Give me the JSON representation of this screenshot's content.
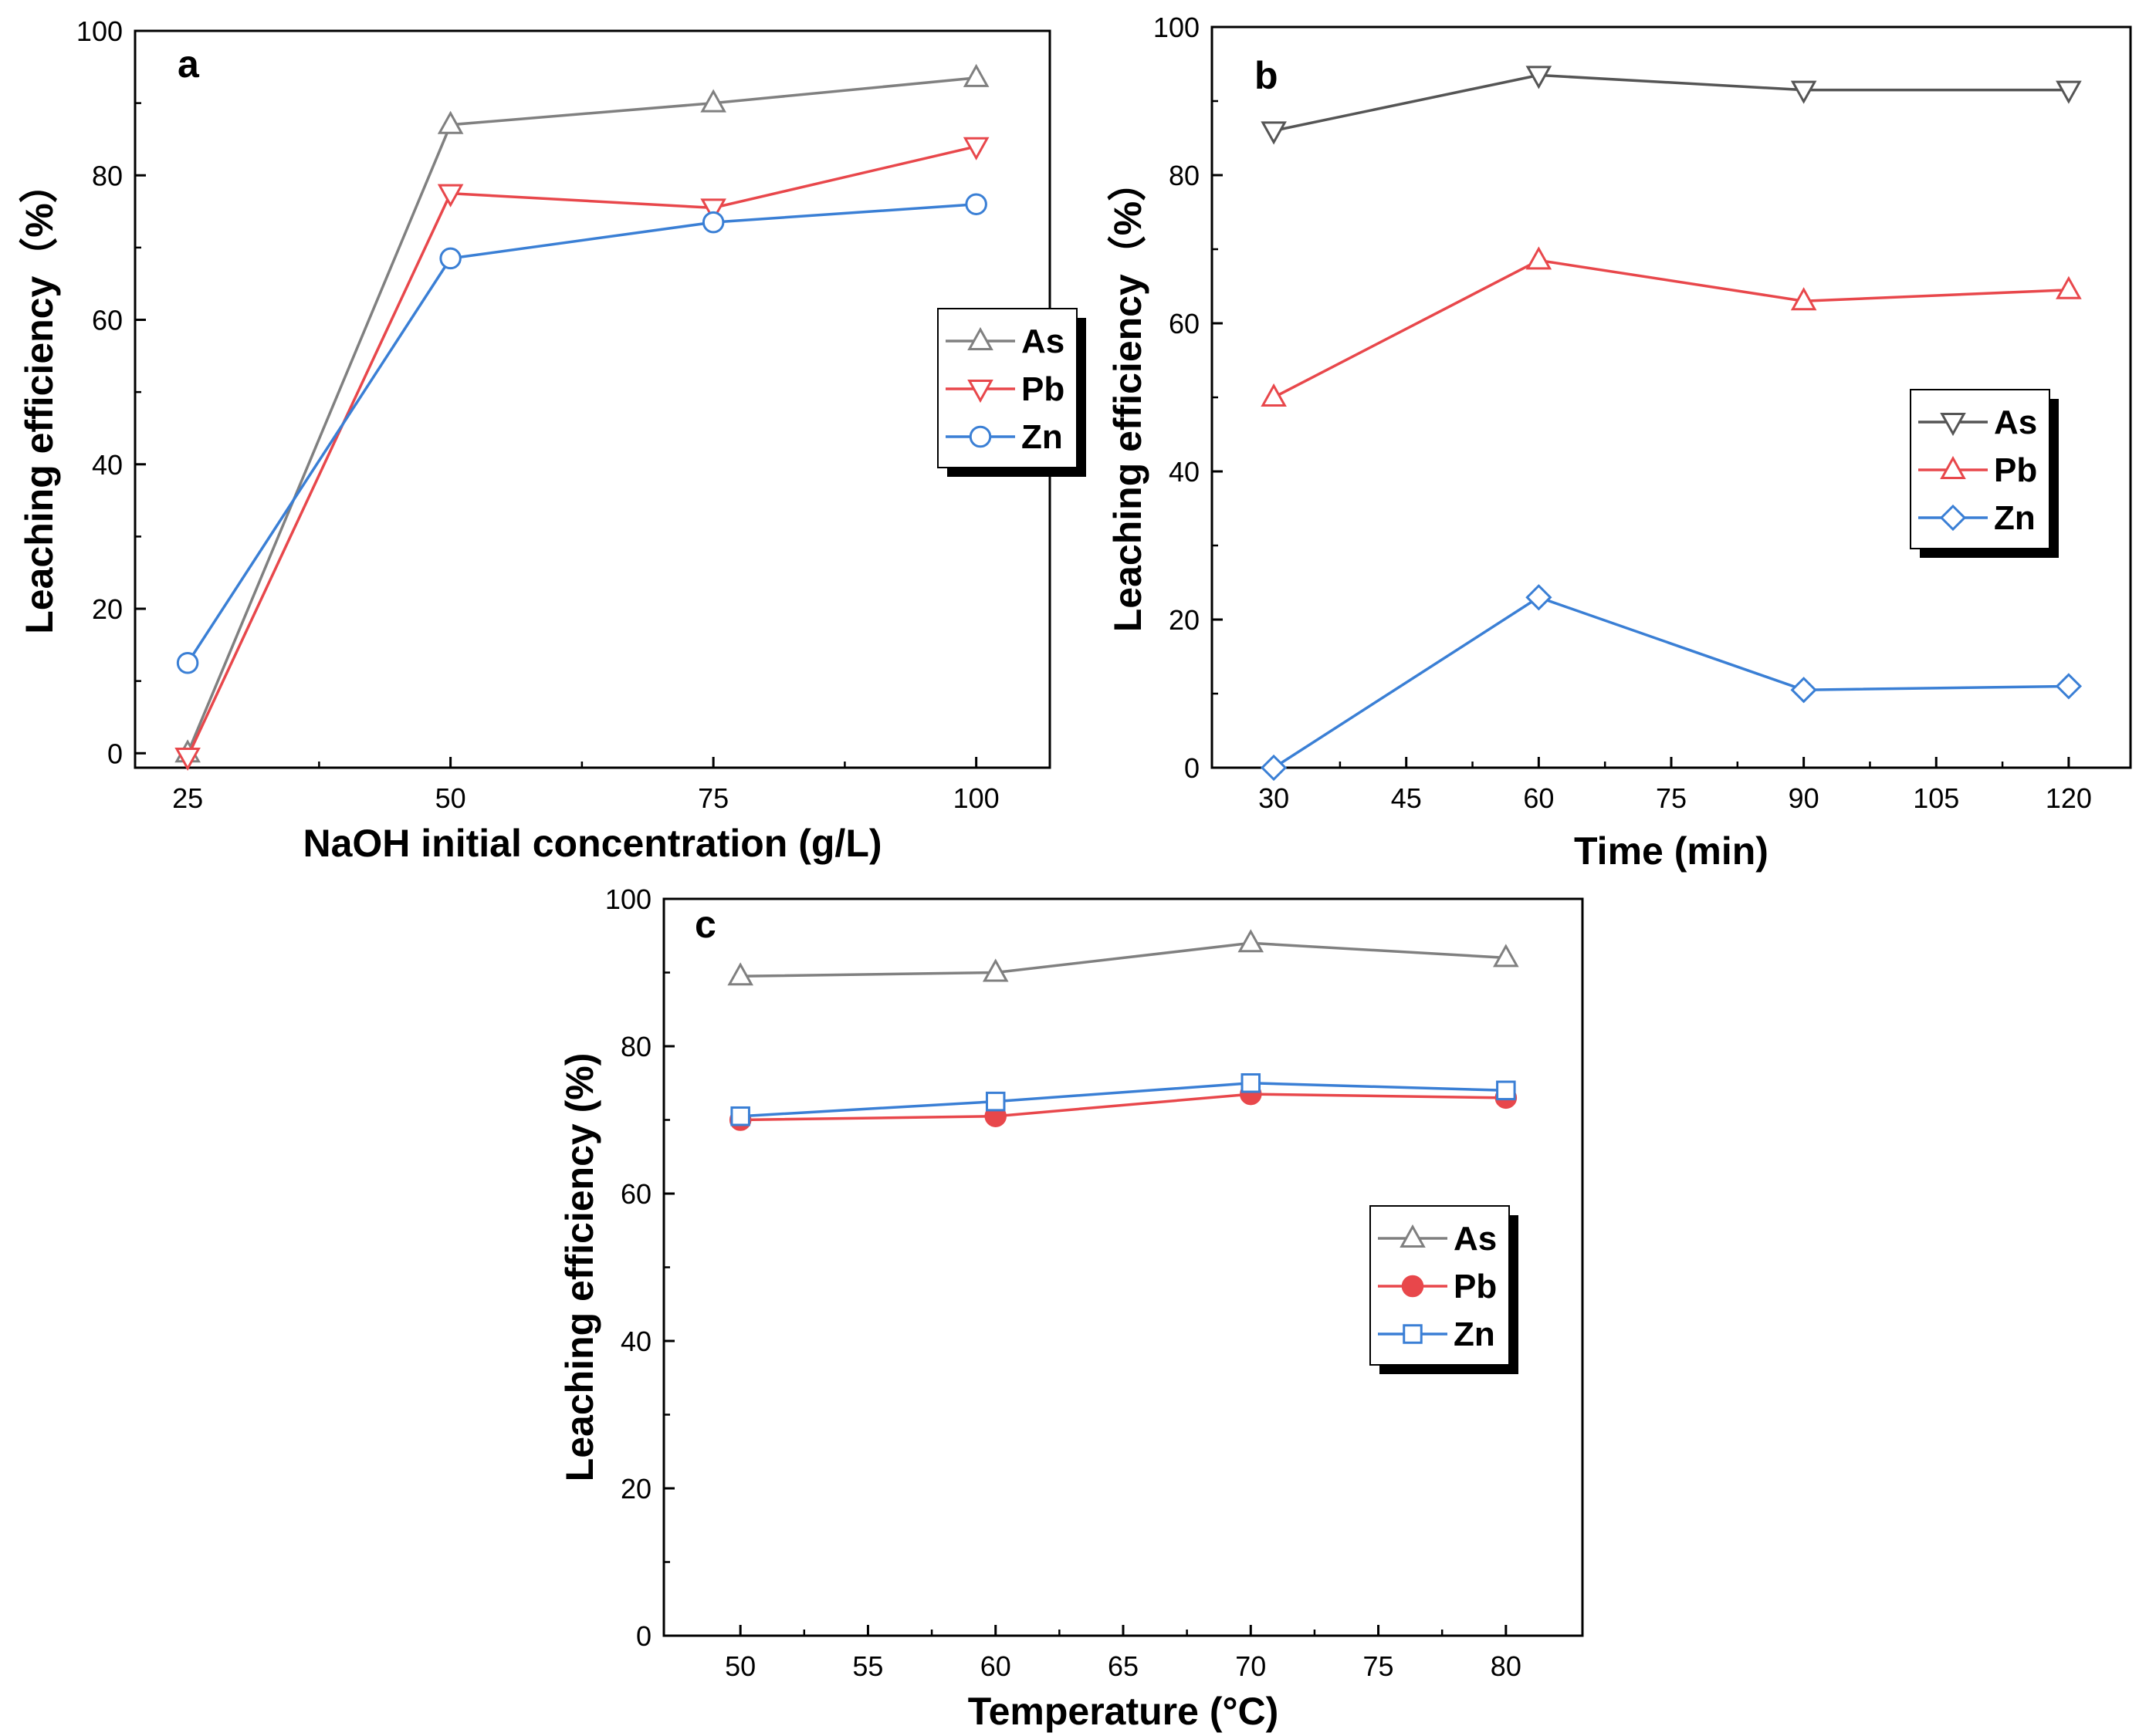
{
  "chart_data": [
    {
      "id": "a",
      "type": "line",
      "panel_label": "a",
      "xlabel": "NaOH initial concentration (g/L)",
      "ylabel": "Leaching efficiency（%）",
      "xlim": [
        20,
        107
      ],
      "ylim": [
        -2,
        100
      ],
      "xticks": [
        25,
        50,
        75,
        100
      ],
      "xminor": [
        37.5,
        62.5,
        87.5
      ],
      "yticks": [
        0,
        20,
        40,
        60,
        80,
        100
      ],
      "yminor": [
        10,
        30,
        50,
        70,
        90
      ],
      "legend_position": "middle-right",
      "x": [
        25,
        50,
        75,
        100
      ],
      "series": [
        {
          "name": "As",
          "color": "#808080",
          "marker": "triangle-up",
          "values": [
            0,
            87,
            90,
            93.5
          ]
        },
        {
          "name": "Pb",
          "color": "#e8474b",
          "marker": "triangle-down",
          "values": [
            -0.5,
            77.5,
            75.5,
            84
          ]
        },
        {
          "name": "Zn",
          "color": "#3a7fd5",
          "marker": "circle",
          "values": [
            12.5,
            68.5,
            73.5,
            76
          ]
        }
      ]
    },
    {
      "id": "b",
      "type": "line",
      "panel_label": "b",
      "xlabel": "Time (min)",
      "ylabel": "Leaching efficiency（%）",
      "xlim": [
        23,
        127
      ],
      "ylim": [
        0,
        100
      ],
      "xticks": [
        30,
        45,
        60,
        75,
        90,
        105,
        120
      ],
      "xminor": [
        37.5,
        52.5,
        67.5,
        82.5,
        97.5,
        112.5
      ],
      "yticks": [
        0,
        20,
        40,
        60,
        80,
        100
      ],
      "yminor": [
        10,
        30,
        50,
        70,
        90
      ],
      "legend_position": "middle-right",
      "x": [
        30,
        60,
        90,
        120
      ],
      "series": [
        {
          "name": "As",
          "color": "#555555",
          "marker": "triangle-down",
          "values": [
            86,
            93.5,
            91.5,
            91.5
          ]
        },
        {
          "name": "Pb",
          "color": "#e8474b",
          "marker": "triangle-up",
          "values": [
            50,
            68.5,
            63,
            64.5
          ]
        },
        {
          "name": "Zn",
          "color": "#3a7fd5",
          "marker": "diamond",
          "values": [
            0,
            23,
            10.5,
            11
          ]
        }
      ]
    },
    {
      "id": "c",
      "type": "line",
      "panel_label": "c",
      "xlabel": "Temperature (°C)",
      "ylabel": "Leaching efficiency (%)",
      "xlim": [
        47,
        83
      ],
      "ylim": [
        0,
        100
      ],
      "xticks": [
        50,
        55,
        60,
        65,
        70,
        75,
        80
      ],
      "xminor": [
        52.5,
        57.5,
        62.5,
        67.5,
        72.5,
        77.5
      ],
      "yticks": [
        0,
        20,
        40,
        60,
        80,
        100
      ],
      "yminor": [
        10,
        30,
        50,
        70,
        90
      ],
      "legend_position": "middle-right",
      "x": [
        50,
        60,
        70,
        80
      ],
      "series": [
        {
          "name": "As",
          "color": "#808080",
          "marker": "triangle-up",
          "values": [
            89.5,
            90,
            94,
            92
          ]
        },
        {
          "name": "Pb",
          "color": "#e8474b",
          "marker": "filled-circle",
          "values": [
            70,
            70.5,
            73.5,
            73
          ]
        },
        {
          "name": "Zn",
          "color": "#3a7fd5",
          "marker": "square",
          "values": [
            70.5,
            72.5,
            75,
            74
          ]
        }
      ]
    }
  ]
}
